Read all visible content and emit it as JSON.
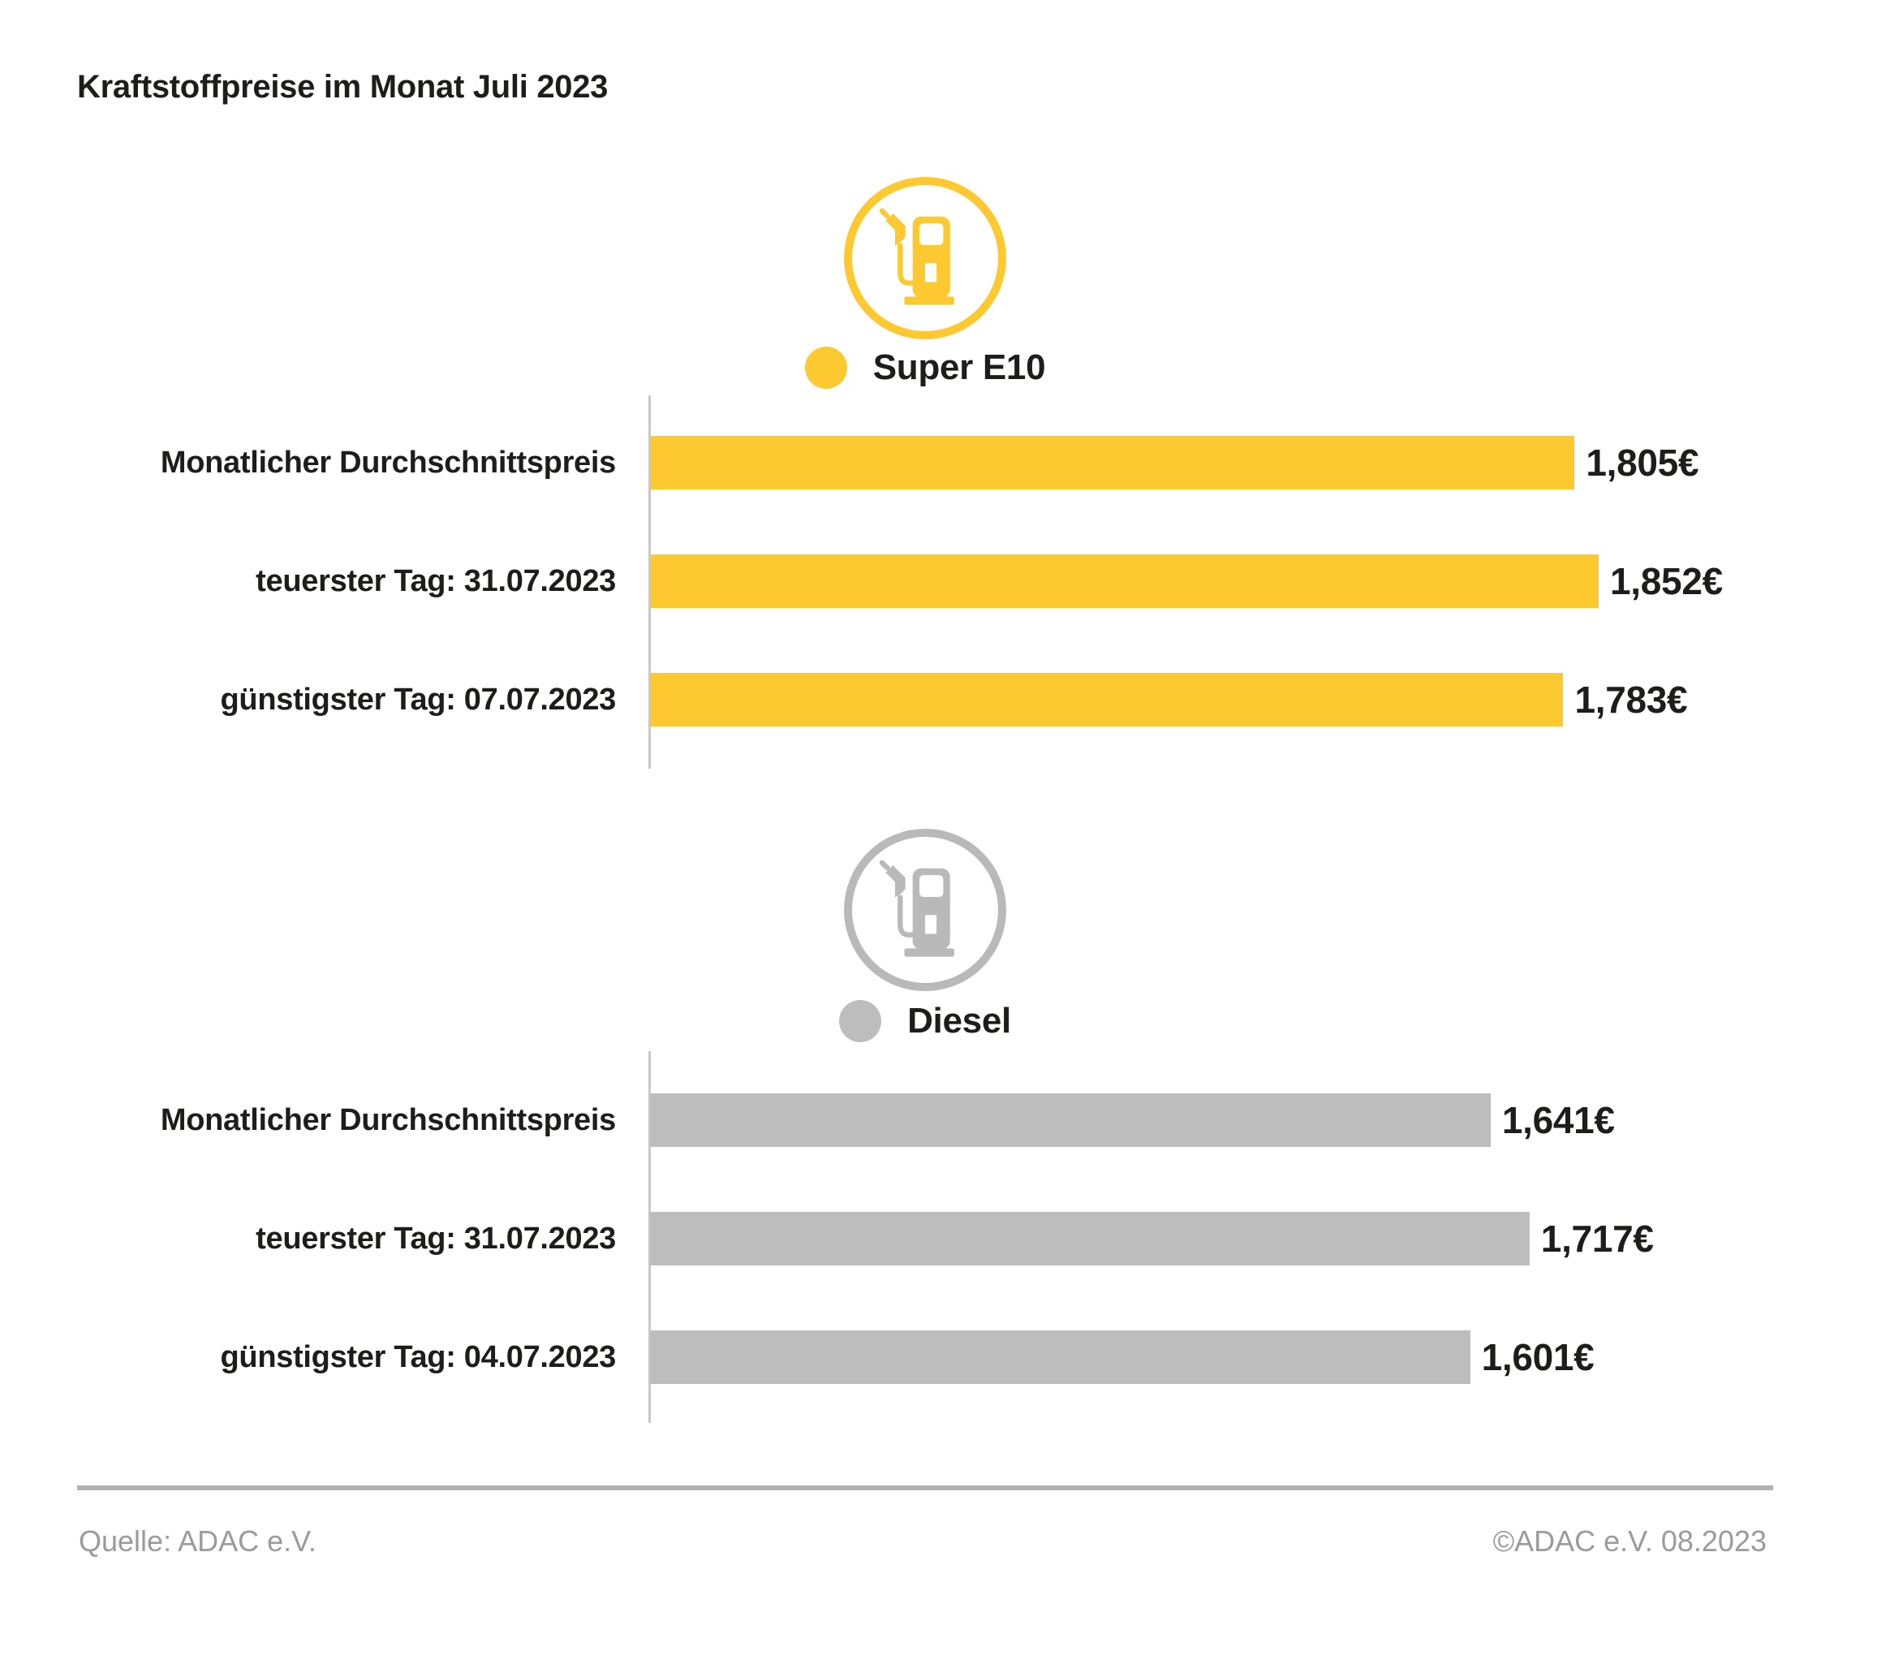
{
  "title": "Kraftstoffpreise im Monat Juli 2023",
  "colors": {
    "super_e10": "#FDC931",
    "diesel_bar": "#BDBDBD",
    "diesel_icon": "#B9B9B9",
    "text": "#1D1D1B",
    "footer_text": "#9B9B9B",
    "rule": "#B1B1B1",
    "axis": "#C8C8C8"
  },
  "legend": {
    "super": "Super E10",
    "diesel": "Diesel"
  },
  "chart_data": [
    {
      "type": "bar",
      "orientation": "horizontal",
      "series_name": "Super E10",
      "color": "#FDC931",
      "categories": [
        "Monatlicher Durchschnittspreis",
        "teuerster Tag: 31.07.2023",
        "günstigster Tag: 07.07.2023"
      ],
      "values": [
        1.805,
        1.852,
        1.783
      ],
      "value_labels": [
        "1,805€",
        "1,852€",
        "1,783€"
      ],
      "unit": "€ / Liter",
      "xlim": [
        0,
        1.852
      ],
      "grid": false,
      "legend_position": "top-center"
    },
    {
      "type": "bar",
      "orientation": "horizontal",
      "series_name": "Diesel",
      "color": "#BDBDBD",
      "categories": [
        "Monatlicher Durchschnittspreis",
        "teuerster Tag: 31.07.2023",
        "günstigster Tag: 04.07.2023"
      ],
      "values": [
        1.641,
        1.717,
        1.601
      ],
      "value_labels": [
        "1,641€",
        "1,717€",
        "1,601€"
      ],
      "unit": "€ / Liter",
      "xlim": [
        0,
        1.852
      ],
      "grid": false,
      "legend_position": "top-center"
    }
  ],
  "footer": {
    "source": "Quelle: ADAC e.V.",
    "copyright": "©ADAC e.V. 08.2023"
  }
}
